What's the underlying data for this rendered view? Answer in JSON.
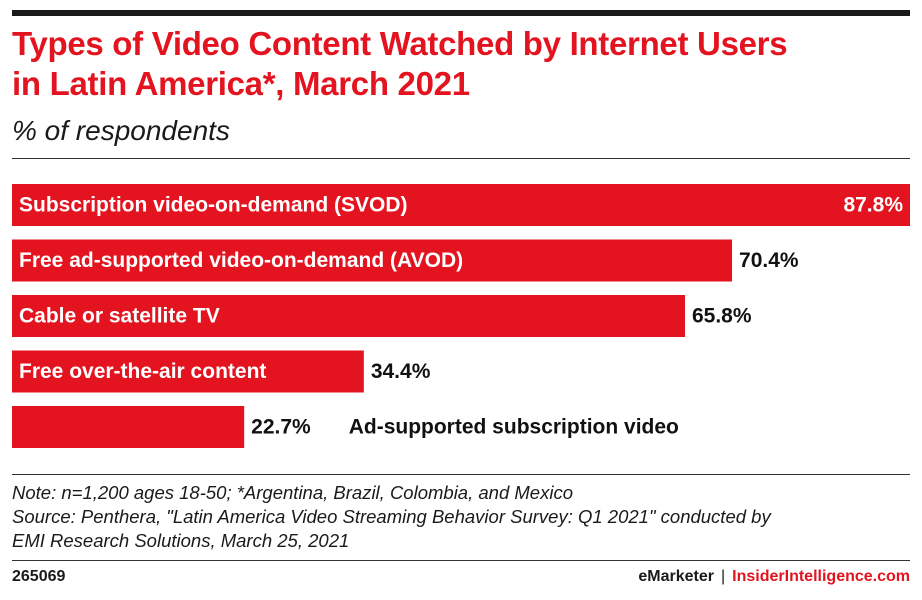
{
  "title_line1": "Types of Video Content Watched by Internet Users",
  "title_line2": "in Latin America*, March 2021",
  "subtitle": "% of respondents",
  "note_line1": "Note: n=1,200 ages 18-50; *Argentina, Brazil, Colombia, and Mexico",
  "source_line1": "Source: Penthera, \"Latin America Video Streaming Behavior Survey: Q1 2021\" conducted by",
  "source_line2": "EMI Research Solutions, March 25, 2021",
  "footer_id": "265069",
  "footer_brand_left": "eMarketer",
  "footer_separator": "|",
  "footer_brand_right": "InsiderIntelligence.com",
  "colors": {
    "bar": "#e3141f",
    "title": "#e3141f",
    "label_inside": "#ffffff",
    "label_outside": "#111111"
  },
  "chart_data": {
    "type": "bar",
    "orientation": "horizontal",
    "categories": [
      "Subscription video-on-demand (SVOD)",
      "Free ad-supported video-on-demand (AVOD)",
      "Cable or satellite TV",
      "Free over-the-air content",
      "Ad-supported subscription video"
    ],
    "values": [
      87.8,
      70.4,
      65.8,
      34.4,
      22.7
    ],
    "value_labels": [
      "87.8%",
      "70.4%",
      "65.8%",
      "34.4%",
      "22.7%"
    ],
    "unit": "%",
    "xlim": [
      0,
      87.8
    ],
    "grid": false,
    "legend": "none"
  }
}
